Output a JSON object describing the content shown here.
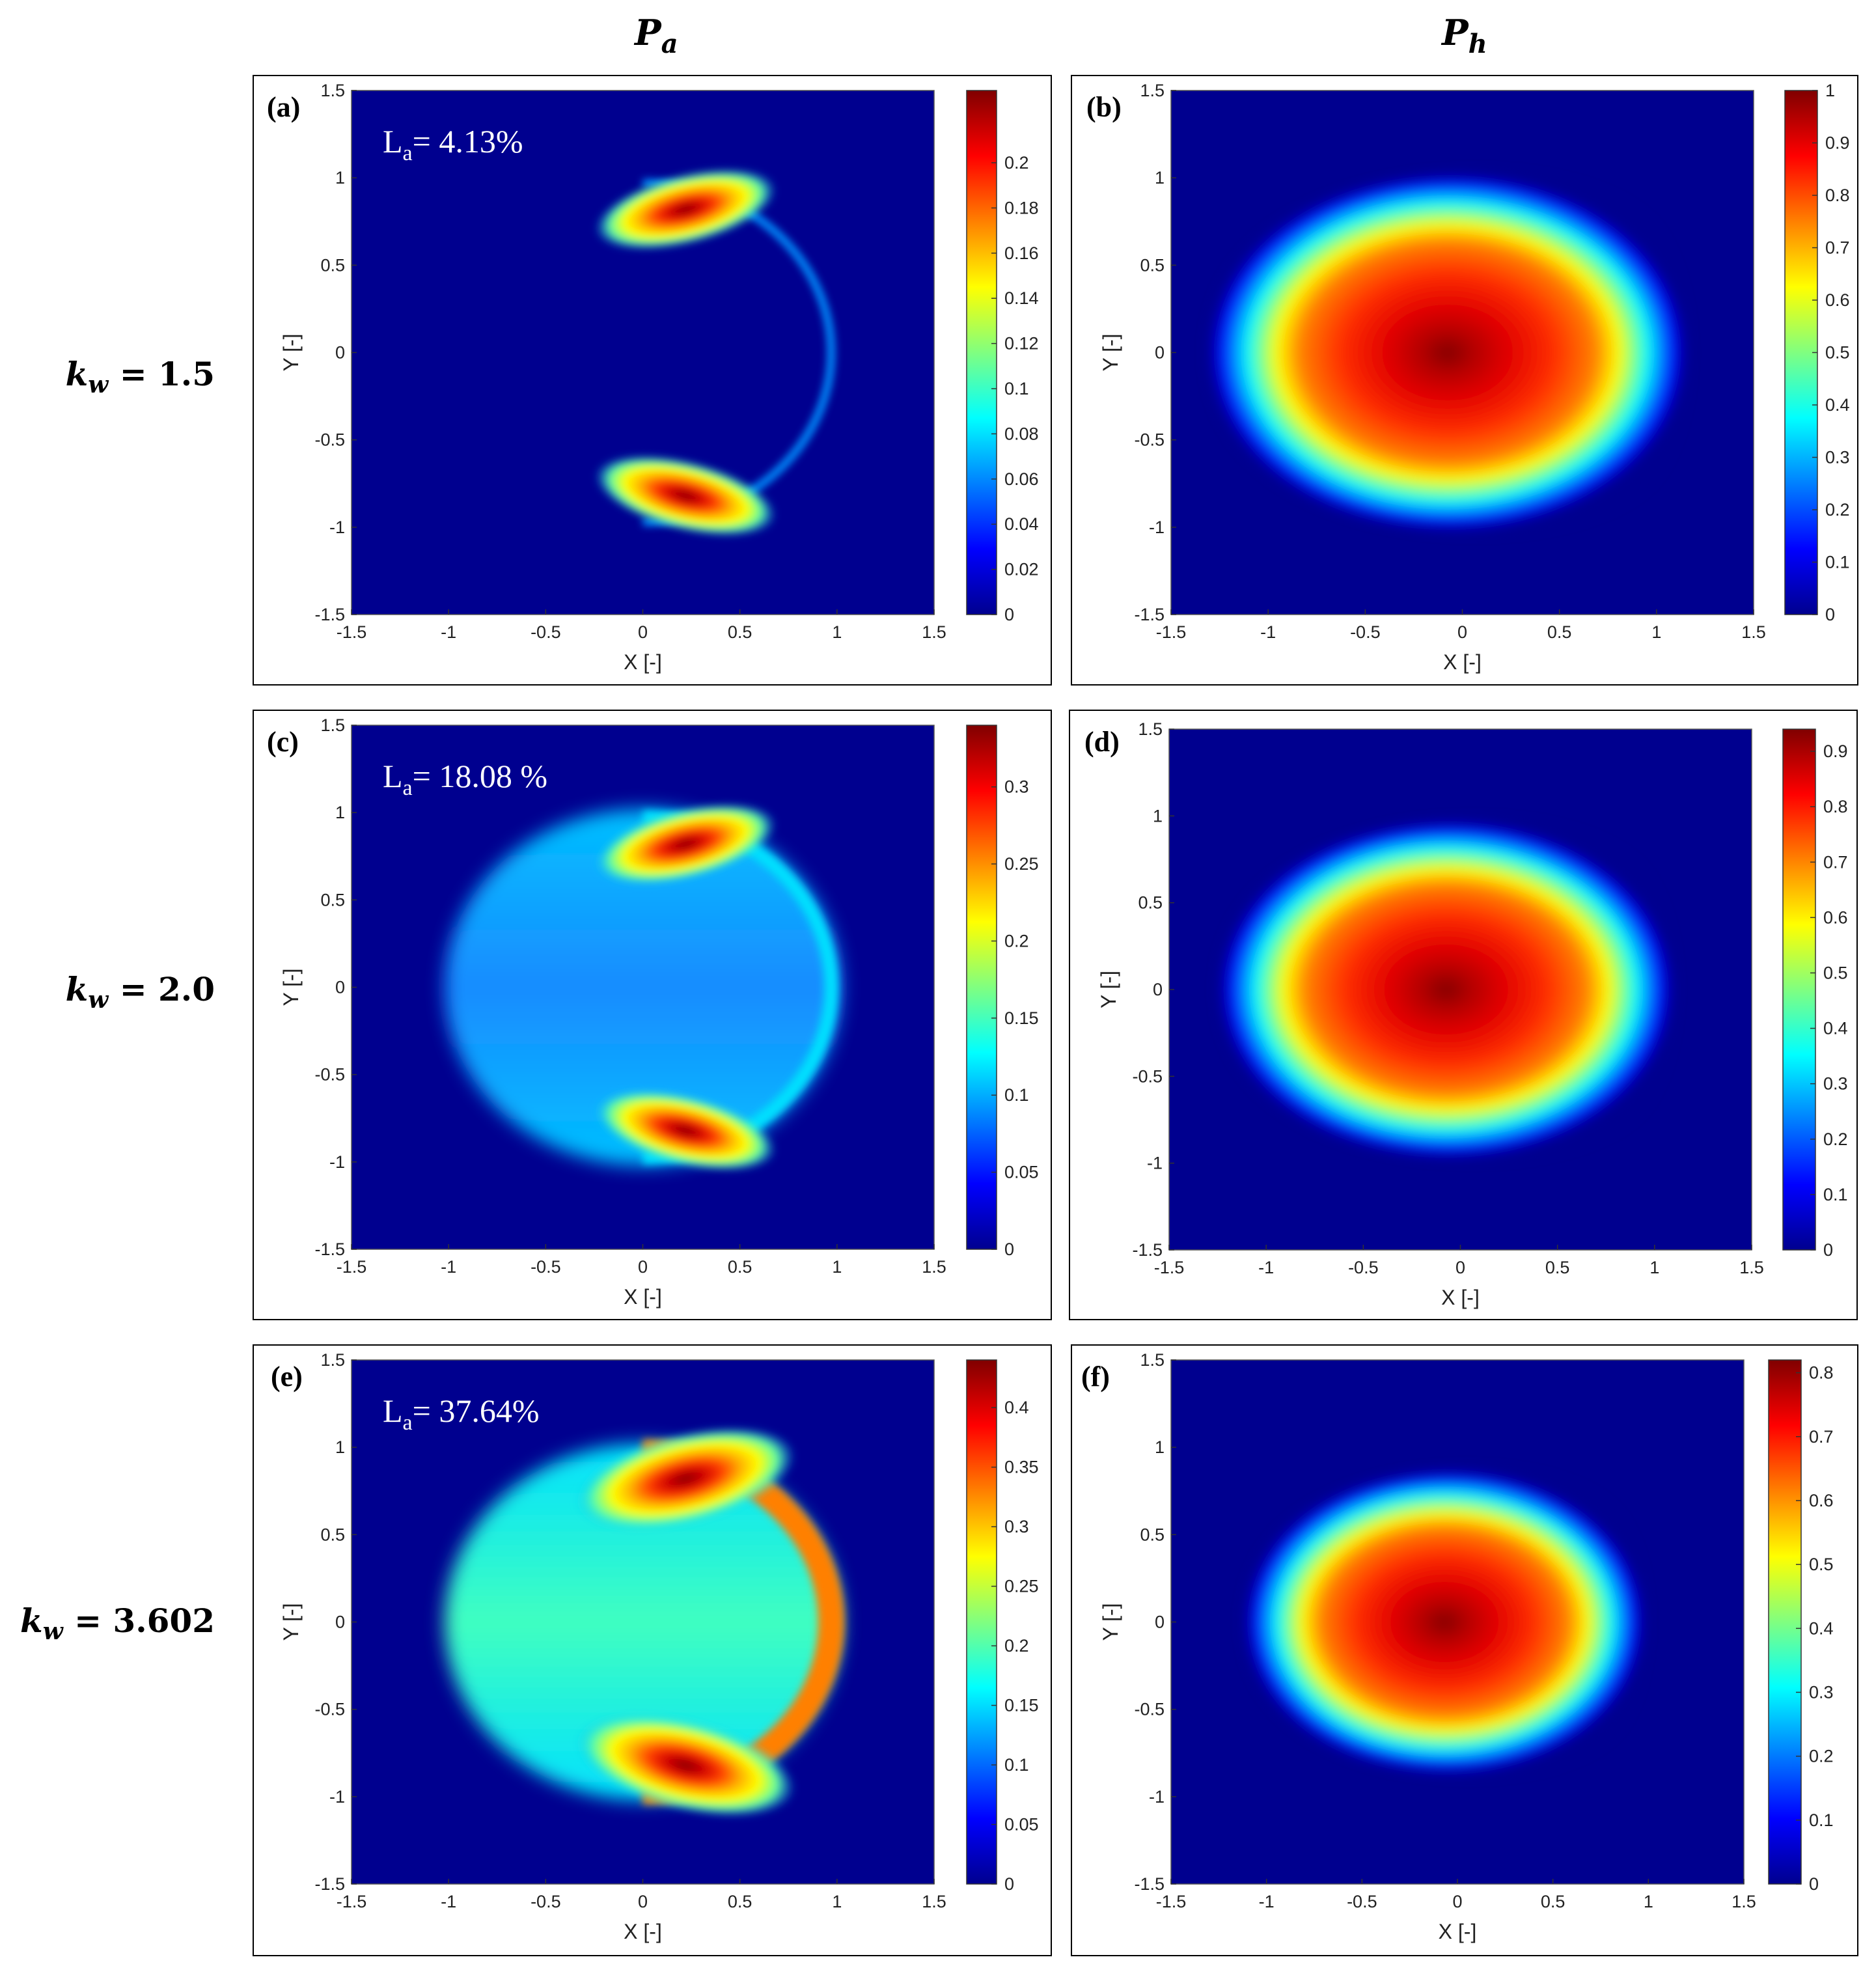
{
  "column_headers": {
    "pa": {
      "main": "P",
      "sub": "a"
    },
    "ph": {
      "main": "P",
      "sub": "h"
    }
  },
  "row_headers": [
    {
      "k": "k",
      "sub": "w",
      "eq": "= 1.5"
    },
    {
      "k": "k",
      "sub": "w",
      "eq": "= 2.0"
    },
    {
      "k": "k",
      "sub": "w",
      "eq": "= 3.602"
    }
  ],
  "colors": {
    "low": "#00008f",
    "high": "#800000"
  },
  "chart_data": [
    {
      "id": "a",
      "label": "(a)",
      "type": "heatmap",
      "field": "pa",
      "k": 1.5,
      "xlabel": "X [-]",
      "ylabel": "Y [-]",
      "xlim": [
        -1.5,
        1.5
      ],
      "ylim": [
        -1.5,
        1.5
      ],
      "xticks": [
        "-1.5",
        "-1",
        "-0.5",
        "0",
        "0.5",
        "1",
        "1.5"
      ],
      "yticks": [
        "1.5",
        "1",
        "0.5",
        "0",
        "-0.5",
        "-1",
        "-1.5"
      ],
      "clim": [
        0,
        0.232
      ],
      "cticks": [
        "0.2",
        "0.18",
        "0.16",
        "0.14",
        "0.12",
        "0.1",
        "0.08",
        "0.06",
        "0.04",
        "0.02",
        "0"
      ],
      "annotation": {
        "L": "L",
        "sub": "a",
        "text": "= 4.13%"
      }
    },
    {
      "id": "b",
      "label": "(b)",
      "type": "heatmap",
      "field": "ph",
      "k": 1.5,
      "xlabel": "X [-]",
      "ylabel": "Y [-]",
      "xlim": [
        -1.5,
        1.5
      ],
      "ylim": [
        -1.5,
        1.5
      ],
      "xticks": [
        "-1.5",
        "-1",
        "-0.5",
        "0",
        "0.5",
        "1",
        "1.5"
      ],
      "yticks": [
        "1.5",
        "1",
        "0.5",
        "0",
        "-0.5",
        "-1",
        "-1.5"
      ],
      "clim": [
        0,
        1.0
      ],
      "cticks": [
        "1",
        "0.9",
        "0.8",
        "0.7",
        "0.6",
        "0.5",
        "0.4",
        "0.3",
        "0.2",
        "0.1",
        "0"
      ]
    },
    {
      "id": "c",
      "label": "(c)",
      "type": "heatmap",
      "field": "pa",
      "k": 2.0,
      "xlabel": "X [-]",
      "ylabel": "Y [-]",
      "xlim": [
        -1.5,
        1.5
      ],
      "ylim": [
        -1.5,
        1.5
      ],
      "xticks": [
        "-1.5",
        "-1",
        "-0.5",
        "0",
        "0.5",
        "1",
        "1.5"
      ],
      "yticks": [
        "1.5",
        "1",
        "0.5",
        "0",
        "-0.5",
        "-1",
        "-1.5"
      ],
      "clim": [
        0,
        0.34
      ],
      "cticks": [
        "0.3",
        "0.25",
        "0.2",
        "0.15",
        "0.1",
        "0.05",
        "0"
      ],
      "annotation": {
        "L": "L",
        "sub": "a",
        "text": "= 18.08 %"
      }
    },
    {
      "id": "d",
      "label": "(d)",
      "type": "heatmap",
      "field": "ph",
      "k": 2.0,
      "xlabel": "X [-]",
      "ylabel": "Y [-]",
      "xlim": [
        -1.5,
        1.5
      ],
      "ylim": [
        -1.5,
        1.5
      ],
      "xticks": [
        "-1.5",
        "-1",
        "-0.5",
        "0",
        "0.5",
        "1",
        "1.5"
      ],
      "yticks": [
        "1.5",
        "1",
        "0.5",
        "0",
        "-0.5",
        "-1",
        "-1.5"
      ],
      "clim": [
        0,
        0.94
      ],
      "cticks": [
        "0.9",
        "0.8",
        "0.7",
        "0.6",
        "0.5",
        "0.4",
        "0.3",
        "0.2",
        "0.1",
        "0"
      ]
    },
    {
      "id": "e",
      "label": "(e)",
      "type": "heatmap",
      "field": "pa",
      "k": 3.602,
      "xlabel": "X [-]",
      "ylabel": "Y [-]",
      "xlim": [
        -1.5,
        1.5
      ],
      "ylim": [
        -1.5,
        1.5
      ],
      "xticks": [
        "-1.5",
        "-1",
        "-0.5",
        "0",
        "0.5",
        "1",
        "1.5"
      ],
      "yticks": [
        "1.5",
        "1",
        "0.5",
        "0",
        "-0.5",
        "-1",
        "-1.5"
      ],
      "clim": [
        0,
        0.44
      ],
      "cticks": [
        "0.4",
        "0.35",
        "0.3",
        "0.25",
        "0.2",
        "0.15",
        "0.1",
        "0.05",
        "0"
      ],
      "annotation": {
        "L": "L",
        "sub": "a",
        "text": "= 37.64%"
      }
    },
    {
      "id": "f",
      "label": "(f)",
      "type": "heatmap",
      "field": "ph",
      "k": 3.602,
      "xlabel": "X [-]",
      "ylabel": "Y [-]",
      "xlim": [
        -1.5,
        1.5
      ],
      "ylim": [
        -1.5,
        1.5
      ],
      "xticks": [
        "-1.5",
        "-1",
        "-0.5",
        "0",
        "0.5",
        "1",
        "1.5"
      ],
      "yticks": [
        "1.5",
        "1",
        "0.5",
        "0",
        "-0.5",
        "-1",
        "-1.5"
      ],
      "clim": [
        0,
        0.82
      ],
      "cticks": [
        "0.8",
        "0.7",
        "0.6",
        "0.5",
        "0.4",
        "0.3",
        "0.2",
        "0.1",
        "0"
      ]
    }
  ]
}
